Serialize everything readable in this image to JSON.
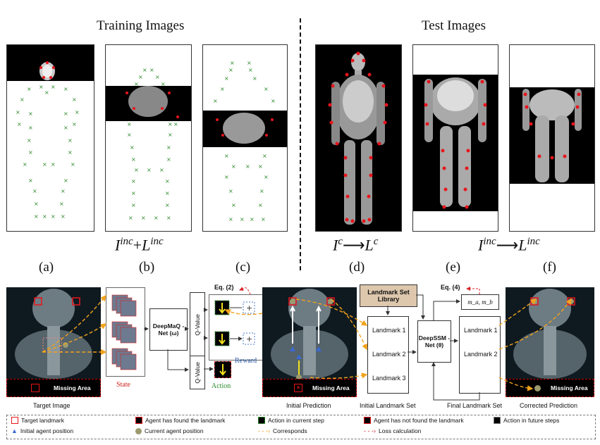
{
  "top": {
    "training_title": "Training Images",
    "test_title": "Test Images",
    "formulas": {
      "b": {
        "base1": "I",
        "sup1": "inc",
        "op": "+",
        "base2": "L",
        "sup2": "inc"
      },
      "d": {
        "base1": "I",
        "sup1": "c",
        "op": "⟶",
        "base2": "L",
        "sup2": "c"
      },
      "f": {
        "base1": "I",
        "sup1": "inc",
        "op": "⟶",
        "base2": "L",
        "sup2": "inc"
      }
    },
    "labels": [
      "(a)",
      "(b)",
      "(c)",
      "(d)",
      "(e)",
      "(f)"
    ]
  },
  "pipeline": {
    "target_image": "Target Image",
    "missing_area": "Missing Area",
    "state": "State",
    "deepmaq": "DeepMaQ -Net (ω)",
    "q_value": "Q-Value",
    "eq2": "Eq. (2)",
    "reward": "Reward",
    "action": "Action",
    "initial_prediction": "Initial Prediction",
    "library": "Landmark Set Library",
    "landmark1": "Landmark 1",
    "landmark2": "Landmark 2",
    "landmark3": "Landmark 3",
    "initial_set": "Initial Landmark Set",
    "eq4": "Eq. (4)",
    "ma_mb": "m_a, m_b",
    "deepssm": "DeepSSM -Net (θ)",
    "final_set": "Final Landmark Set",
    "corrected_prediction": "Corrected Prediction"
  },
  "legend": {
    "target_landmark": "Target landmark",
    "found": "Agent has found the landmark",
    "action_current": "Action in current step",
    "not_found": "Agent has not found the landmark",
    "action_future": "Action in future steps",
    "initial_pos": "Initial agent position",
    "current_pos": "Current agent position",
    "corresponds": "Corresponds",
    "loss": "Loss calculation"
  },
  "colors": {
    "landmark_red": "#e8141b",
    "marker_green": "#2a8a2a",
    "arrow_orange": "#f2a21c",
    "loss_red": "#d8262c",
    "library_fill": "#ddc7ad"
  }
}
